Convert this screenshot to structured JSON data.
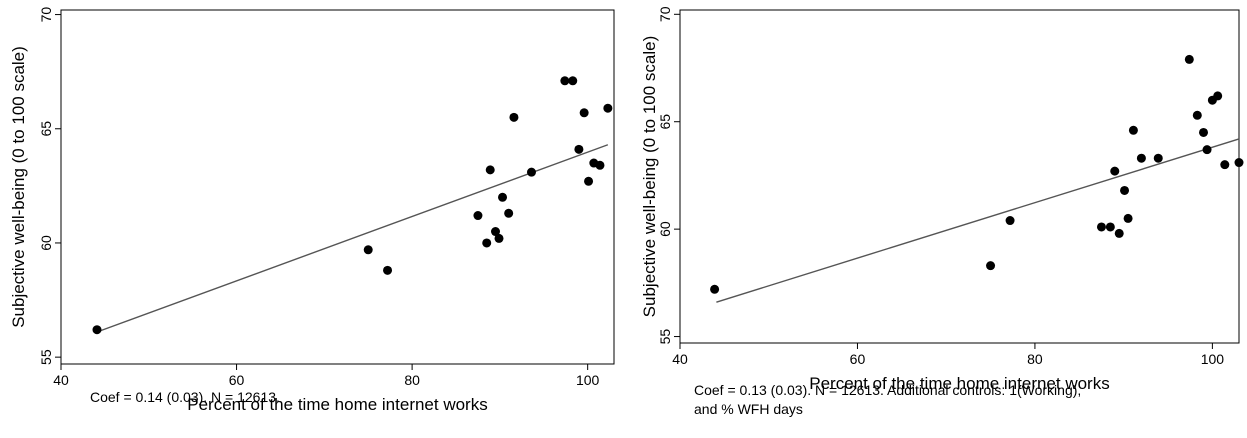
{
  "chart_data": [
    {
      "type": "scatter",
      "xlabel": "Percent of the time home internet works",
      "ylabel": "Subjective well-being (0 to 100 scale)",
      "xlim": [
        40,
        103
      ],
      "ylim": [
        54.7,
        70.2
      ],
      "xticks": [
        40,
        60,
        80,
        100
      ],
      "yticks": [
        55,
        60,
        65,
        70
      ],
      "note": [
        "Coef = 0.14 (0.03). N = 12613."
      ],
      "points": [
        {
          "x": 44.1,
          "y": 56.2
        },
        {
          "x": 75.0,
          "y": 59.7
        },
        {
          "x": 77.2,
          "y": 58.8
        },
        {
          "x": 87.5,
          "y": 61.2
        },
        {
          "x": 88.5,
          "y": 60.0
        },
        {
          "x": 88.9,
          "y": 63.2
        },
        {
          "x": 89.5,
          "y": 60.5
        },
        {
          "x": 89.9,
          "y": 60.2
        },
        {
          "x": 90.3,
          "y": 62.0
        },
        {
          "x": 91.0,
          "y": 61.3
        },
        {
          "x": 91.6,
          "y": 65.5
        },
        {
          "x": 93.6,
          "y": 63.1
        },
        {
          "x": 97.4,
          "y": 67.1
        },
        {
          "x": 98.3,
          "y": 67.1
        },
        {
          "x": 99.0,
          "y": 64.1
        },
        {
          "x": 99.6,
          "y": 65.7
        },
        {
          "x": 100.1,
          "y": 62.7
        },
        {
          "x": 100.7,
          "y": 63.5
        },
        {
          "x": 101.4,
          "y": 63.4
        },
        {
          "x": 102.3,
          "y": 65.9
        }
      ],
      "fit_line": {
        "x": [
          44.1,
          102.3
        ],
        "y": [
          56.1,
          64.3
        ]
      }
    },
    {
      "type": "scatter",
      "xlabel": "Percent of the time home internet works",
      "ylabel": "Subjective well-being (0 to 100 scale)",
      "xlim": [
        40,
        103
      ],
      "ylim": [
        54.7,
        70.2
      ],
      "xticks": [
        40,
        60,
        80,
        100
      ],
      "yticks": [
        55,
        60,
        65,
        70
      ],
      "note": [
        "Coef = 0.13 (0.03). N = 12613. Additional controls: 1(Working),",
        "and % WFH days"
      ],
      "points": [
        {
          "x": 43.9,
          "y": 57.2
        },
        {
          "x": 75.0,
          "y": 58.3
        },
        {
          "x": 77.2,
          "y": 60.4
        },
        {
          "x": 87.5,
          "y": 60.1
        },
        {
          "x": 88.5,
          "y": 60.1
        },
        {
          "x": 89.0,
          "y": 62.7
        },
        {
          "x": 89.5,
          "y": 59.8
        },
        {
          "x": 90.1,
          "y": 61.8
        },
        {
          "x": 90.5,
          "y": 60.5
        },
        {
          "x": 91.1,
          "y": 64.6
        },
        {
          "x": 92.0,
          "y": 63.3
        },
        {
          "x": 93.9,
          "y": 63.3
        },
        {
          "x": 97.4,
          "y": 67.9
        },
        {
          "x": 98.3,
          "y": 65.3
        },
        {
          "x": 99.0,
          "y": 64.5
        },
        {
          "x": 99.4,
          "y": 63.7
        },
        {
          "x": 100.0,
          "y": 66.0
        },
        {
          "x": 100.6,
          "y": 66.2
        },
        {
          "x": 101.4,
          "y": 63.0
        },
        {
          "x": 103.0,
          "y": 63.1
        }
      ],
      "fit_line": {
        "x": [
          44.1,
          103.0
        ],
        "y": [
          56.6,
          64.2
        ]
      }
    }
  ]
}
